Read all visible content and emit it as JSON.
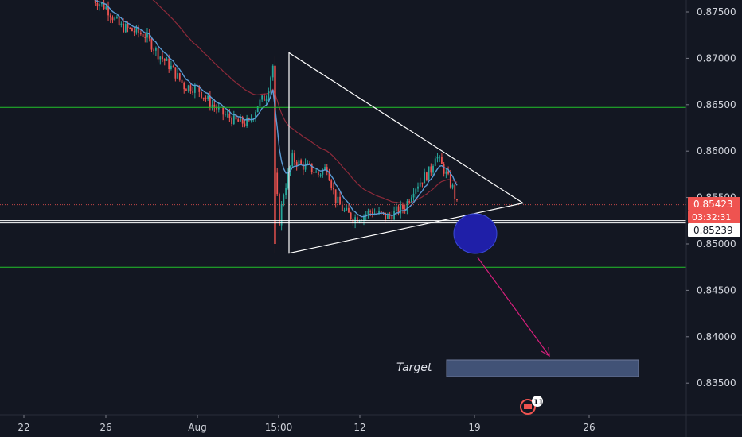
{
  "chart_data": {
    "type": "candlestick",
    "y_ticks": [
      "0.87500",
      "0.87000",
      "0.86500",
      "0.86000",
      "0.85500",
      "0.85000",
      "0.84500",
      "0.84000",
      "0.83500"
    ],
    "x_ticks": [
      "22",
      "26",
      "Aug",
      "15:00",
      "12",
      "19",
      "26"
    ],
    "price_labels": {
      "last_price": "0.85423",
      "countdown": "03:32:31",
      "support_price": "0.85239"
    },
    "horizontal_levels": {
      "resistance": 0.8647,
      "support": 0.85239,
      "lower": 0.8475
    },
    "triangle": {
      "apex_price": 0.8544,
      "top_price": 0.8706,
      "bottom_price": 0.849
    },
    "target_label": "Target",
    "target_zone": [
      0.8357,
      0.8375
    ],
    "ylim": [
      0.8297,
      0.8796
    ],
    "colors": {
      "background": "#131722",
      "up": "#26a69a",
      "down": "#ef5350",
      "ema_fast": "#5b9bd5",
      "ema_slow": "#8e2a3a",
      "level_line": "#22c22a",
      "triangle": "#ffffff",
      "arrow": "#d61f7c",
      "ellipse": "#1f1fa8",
      "target_box": "#4a5d85"
    },
    "badge_count": "11"
  }
}
